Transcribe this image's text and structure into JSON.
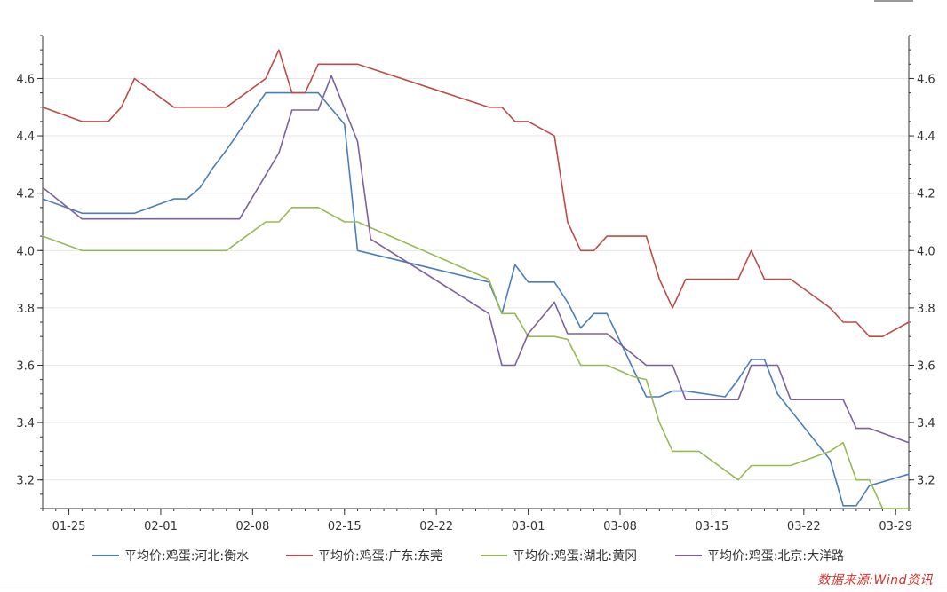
{
  "chart_data": {
    "type": "line",
    "title": "",
    "xlabel": "",
    "ylabel": "",
    "x_range": [
      "2021-01-23",
      "2021-03-30"
    ],
    "ylim": [
      3.1,
      4.75
    ],
    "yticks": [
      3.2,
      3.4,
      3.6,
      3.8,
      4.0,
      4.2,
      4.4,
      4.6
    ],
    "ytick_labels": [
      "3.2",
      "3.4",
      "3.6",
      "3.8",
      "4.0",
      "4.2",
      "4.4",
      "4.6"
    ],
    "xticks": [
      "2021-01-25",
      "2021-02-01",
      "2021-02-08",
      "2021-02-15",
      "2021-02-22",
      "2021-03-01",
      "2021-03-08",
      "2021-03-15",
      "2021-03-22",
      "2021-03-29"
    ],
    "xtick_labels": [
      "01-25",
      "02-01",
      "02-08",
      "02-15",
      "02-22",
      "03-01",
      "03-08",
      "03-15",
      "03-22",
      "03-29"
    ],
    "grid": true,
    "legend_position": "bottom",
    "series": [
      {
        "name": "平均价:鸡蛋:河北:衡水",
        "color": "#4a7ebb",
        "points": [
          [
            "2021-01-23",
            4.18
          ],
          [
            "2021-01-26",
            4.13
          ],
          [
            "2021-01-29",
            4.13
          ],
          [
            "2021-01-30",
            4.13
          ],
          [
            "2021-02-02",
            4.18
          ],
          [
            "2021-02-03",
            4.18
          ],
          [
            "2021-02-04",
            4.22
          ],
          [
            "2021-02-05",
            4.29
          ],
          [
            "2021-02-06",
            4.35
          ],
          [
            "2021-02-09",
            4.55
          ],
          [
            "2021-02-13",
            4.55
          ],
          [
            "2021-02-15",
            4.44
          ],
          [
            "2021-02-16",
            4.0
          ],
          [
            "2021-02-26",
            3.89
          ],
          [
            "2021-02-27",
            3.78
          ],
          [
            "2021-02-28",
            3.95
          ],
          [
            "2021-03-01",
            3.89
          ],
          [
            "2021-03-03",
            3.89
          ],
          [
            "2021-03-04",
            3.82
          ],
          [
            "2021-03-05",
            3.73
          ],
          [
            "2021-03-06",
            3.78
          ],
          [
            "2021-03-07",
            3.78
          ],
          [
            "2021-03-10",
            3.49
          ],
          [
            "2021-03-11",
            3.49
          ],
          [
            "2021-03-12",
            3.51
          ],
          [
            "2021-03-13",
            3.51
          ],
          [
            "2021-03-16",
            3.49
          ],
          [
            "2021-03-17",
            3.55
          ],
          [
            "2021-03-18",
            3.62
          ],
          [
            "2021-03-19",
            3.62
          ],
          [
            "2021-03-20",
            3.5
          ],
          [
            "2021-03-24",
            3.27
          ],
          [
            "2021-03-25",
            3.11
          ],
          [
            "2021-03-26",
            3.11
          ],
          [
            "2021-03-27",
            3.18
          ],
          [
            "2021-03-30",
            3.22
          ]
        ]
      },
      {
        "name": "平均价:鸡蛋:广东:东莞",
        "color": "#be4b48",
        "points": [
          [
            "2021-01-23",
            4.5
          ],
          [
            "2021-01-26",
            4.45
          ],
          [
            "2021-01-28",
            4.45
          ],
          [
            "2021-01-29",
            4.5
          ],
          [
            "2021-01-30",
            4.6
          ],
          [
            "2021-02-02",
            4.5
          ],
          [
            "2021-02-06",
            4.5
          ],
          [
            "2021-02-09",
            4.6
          ],
          [
            "2021-02-10",
            4.7
          ],
          [
            "2021-02-11",
            4.55
          ],
          [
            "2021-02-12",
            4.55
          ],
          [
            "2021-02-13",
            4.65
          ],
          [
            "2021-02-16",
            4.65
          ],
          [
            "2021-02-26",
            4.5
          ],
          [
            "2021-02-27",
            4.5
          ],
          [
            "2021-02-28",
            4.45
          ],
          [
            "2021-03-01",
            4.45
          ],
          [
            "2021-03-03",
            4.4
          ],
          [
            "2021-03-04",
            4.1
          ],
          [
            "2021-03-05",
            4.0
          ],
          [
            "2021-03-06",
            4.0
          ],
          [
            "2021-03-07",
            4.05
          ],
          [
            "2021-03-10",
            4.05
          ],
          [
            "2021-03-11",
            3.9
          ],
          [
            "2021-03-12",
            3.8
          ],
          [
            "2021-03-13",
            3.9
          ],
          [
            "2021-03-17",
            3.9
          ],
          [
            "2021-03-18",
            4.0
          ],
          [
            "2021-03-19",
            3.9
          ],
          [
            "2021-03-21",
            3.9
          ],
          [
            "2021-03-24",
            3.8
          ],
          [
            "2021-03-25",
            3.75
          ],
          [
            "2021-03-26",
            3.75
          ],
          [
            "2021-03-27",
            3.7
          ],
          [
            "2021-03-28",
            3.7
          ],
          [
            "2021-03-30",
            3.75
          ]
        ]
      },
      {
        "name": "平均价:鸡蛋:湖北:黄冈",
        "color": "#98b954",
        "points": [
          [
            "2021-01-23",
            4.05
          ],
          [
            "2021-01-26",
            4.0
          ],
          [
            "2021-02-06",
            4.0
          ],
          [
            "2021-02-09",
            4.1
          ],
          [
            "2021-02-10",
            4.1
          ],
          [
            "2021-02-11",
            4.15
          ],
          [
            "2021-02-13",
            4.15
          ],
          [
            "2021-02-15",
            4.1
          ],
          [
            "2021-02-16",
            4.1
          ],
          [
            "2021-02-26",
            3.9
          ],
          [
            "2021-02-27",
            3.78
          ],
          [
            "2021-02-28",
            3.78
          ],
          [
            "2021-03-01",
            3.7
          ],
          [
            "2021-03-03",
            3.7
          ],
          [
            "2021-03-04",
            3.69
          ],
          [
            "2021-03-05",
            3.6
          ],
          [
            "2021-03-07",
            3.6
          ],
          [
            "2021-03-09",
            3.56
          ],
          [
            "2021-03-10",
            3.55
          ],
          [
            "2021-03-11",
            3.4
          ],
          [
            "2021-03-12",
            3.3
          ],
          [
            "2021-03-14",
            3.3
          ],
          [
            "2021-03-17",
            3.2
          ],
          [
            "2021-03-18",
            3.25
          ],
          [
            "2021-03-21",
            3.25
          ],
          [
            "2021-03-24",
            3.3
          ],
          [
            "2021-03-25",
            3.33
          ],
          [
            "2021-03-26",
            3.2
          ],
          [
            "2021-03-27",
            3.2
          ],
          [
            "2021-03-28",
            3.1
          ],
          [
            "2021-03-30",
            3.1
          ]
        ]
      },
      {
        "name": "平均价:鸡蛋:北京:大洋路",
        "color": "#7d60a0",
        "points": [
          [
            "2021-01-23",
            4.22
          ],
          [
            "2021-01-26",
            4.11
          ],
          [
            "2021-02-07",
            4.11
          ],
          [
            "2021-02-10",
            4.34
          ],
          [
            "2021-02-11",
            4.49
          ],
          [
            "2021-02-13",
            4.49
          ],
          [
            "2021-02-14",
            4.61
          ],
          [
            "2021-02-16",
            4.38
          ],
          [
            "2021-02-17",
            4.04
          ],
          [
            "2021-02-26",
            3.78
          ],
          [
            "2021-02-27",
            3.6
          ],
          [
            "2021-02-28",
            3.6
          ],
          [
            "2021-03-01",
            3.71
          ],
          [
            "2021-03-03",
            3.82
          ],
          [
            "2021-03-04",
            3.71
          ],
          [
            "2021-03-07",
            3.71
          ],
          [
            "2021-03-10",
            3.6
          ],
          [
            "2021-03-12",
            3.6
          ],
          [
            "2021-03-13",
            3.48
          ],
          [
            "2021-03-17",
            3.48
          ],
          [
            "2021-03-18",
            3.6
          ],
          [
            "2021-03-20",
            3.6
          ],
          [
            "2021-03-21",
            3.48
          ],
          [
            "2021-03-25",
            3.48
          ],
          [
            "2021-03-26",
            3.38
          ],
          [
            "2021-03-27",
            3.38
          ],
          [
            "2021-03-30",
            3.33
          ]
        ]
      }
    ]
  },
  "footer": {
    "source_text": "数据来源:Wind资讯"
  }
}
